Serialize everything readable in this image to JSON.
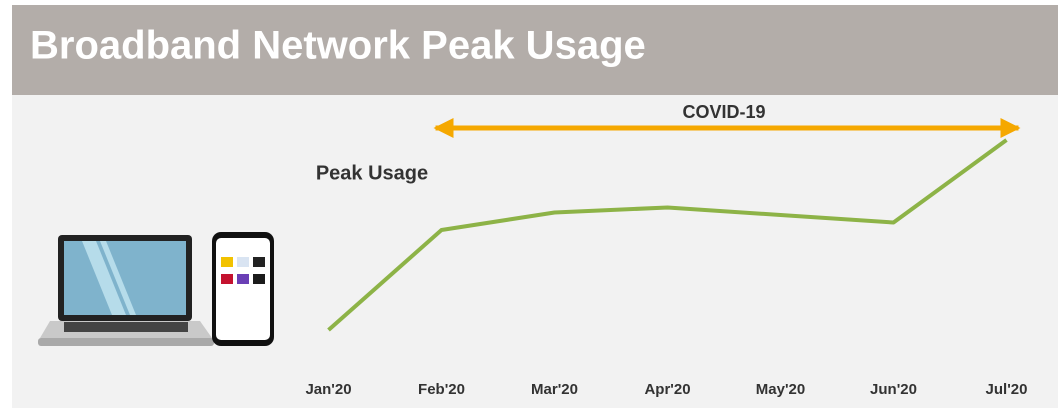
{
  "header": {
    "title": "Broadband Network Peak Usage"
  },
  "chart_data": {
    "type": "line",
    "categories": [
      "Jan'20",
      "Feb'20",
      "Mar'20",
      "Apr'20",
      "May'20",
      "Jun'20",
      "Jul'20"
    ],
    "series": [
      {
        "name": "Peak Usage",
        "color": "#8db347",
        "values": [
          12,
          52,
          59,
          61,
          58,
          55,
          88
        ]
      }
    ],
    "ylim": [
      0,
      100
    ],
    "annotation": {
      "text": "COVID-19",
      "start": "Feb'20",
      "end": "Jul'20",
      "color": "#f5a800"
    }
  }
}
